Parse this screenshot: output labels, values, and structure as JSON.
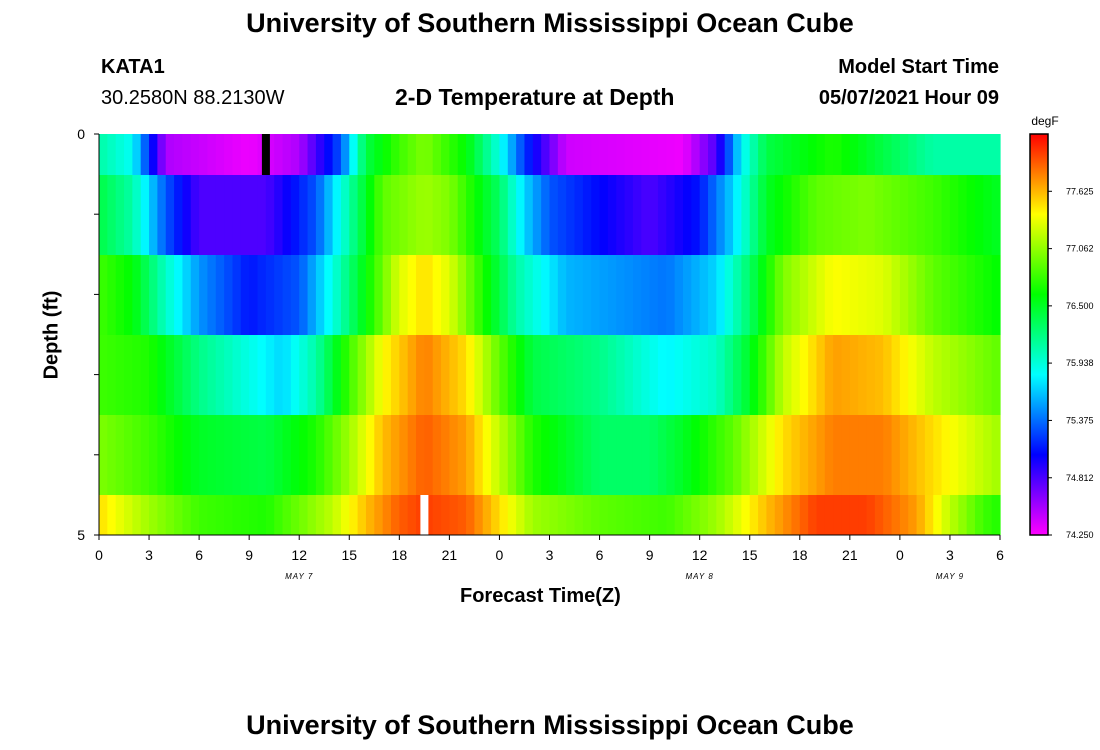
{
  "header": {
    "title": "University of Southern Mississippi Ocean Cube",
    "station": "KATA1",
    "coords": "30.2580N  88.2130W",
    "plot_title": "2-D Temperature at Depth",
    "model_label": "Model Start Time",
    "model_time": "05/07/2021 Hour 09"
  },
  "footer": {
    "title": "University of Southern Mississippi Ocean Cube"
  },
  "colorbar": {
    "unit": "degF",
    "min": 74.25,
    "max": 78.1875,
    "ticks": [
      "77.625",
      "77.062",
      "76.500",
      "75.938",
      "75.375",
      "74.812",
      "74.250"
    ]
  },
  "chart_data": {
    "type": "heatmap",
    "title": "2-D Temperature at Depth",
    "xlabel": "Forecast Time(Z)",
    "ylabel": "Depth (ft)",
    "x_start_hour": 0,
    "x_end_hour": 54,
    "x_tick_labels": [
      "0",
      "3",
      "6",
      "9",
      "12",
      "15",
      "18",
      "21",
      "0",
      "3",
      "6",
      "9",
      "12",
      "15",
      "18",
      "21",
      "0",
      "3",
      "6"
    ],
    "date_labels": [
      {
        "label": "MAY 7",
        "hour": 12
      },
      {
        "label": "MAY 8",
        "hour": 36
      },
      {
        "label": "MAY 9",
        "hour": 51
      }
    ],
    "y_tick_labels": [
      "0",
      "5"
    ],
    "ylim": [
      0,
      5
    ],
    "depth_layers": [
      {
        "depth": "0.0-0.5",
        "temps": [
          [
            0,
            76.1
          ],
          [
            2,
            75.85
          ],
          [
            4,
            74.5
          ],
          [
            9,
            74.3
          ],
          [
            12,
            74.5
          ],
          [
            14.5,
            75.3
          ],
          [
            16,
            76.4
          ],
          [
            18,
            76.8
          ],
          [
            19.5,
            77.0
          ],
          [
            22,
            76.6
          ],
          [
            24,
            75.9
          ],
          [
            25.5,
            75.2
          ],
          [
            28,
            74.4
          ],
          [
            35,
            74.3
          ],
          [
            37,
            74.8
          ],
          [
            38.5,
            75.8
          ],
          [
            40,
            76.4
          ],
          [
            44,
            76.7
          ],
          [
            46,
            76.5
          ],
          [
            50,
            76.1
          ],
          [
            54,
            76.1
          ]
        ]
      },
      {
        "depth": "0.5-1.5",
        "temps": [
          [
            0,
            76.4
          ],
          [
            2,
            76.1
          ],
          [
            4,
            75.3
          ],
          [
            6,
            74.8
          ],
          [
            10,
            74.8
          ],
          [
            13,
            75.3
          ],
          [
            15,
            76.1
          ],
          [
            17,
            76.9
          ],
          [
            19.5,
            77.1
          ],
          [
            21,
            77.0
          ],
          [
            24,
            76.3
          ],
          [
            25.5,
            75.7
          ],
          [
            27,
            75.3
          ],
          [
            33,
            74.8
          ],
          [
            36,
            75.1
          ],
          [
            38,
            75.7
          ],
          [
            40,
            76.5
          ],
          [
            43,
            76.9
          ],
          [
            46,
            77.0
          ],
          [
            50,
            76.8
          ],
          [
            54,
            76.5
          ]
        ]
      },
      {
        "depth": "1.5-2.5",
        "temps": [
          [
            0,
            76.8
          ],
          [
            2,
            76.6
          ],
          [
            4,
            76.0
          ],
          [
            6,
            75.5
          ],
          [
            9,
            75.1
          ],
          [
            12,
            75.3
          ],
          [
            14,
            75.9
          ],
          [
            16,
            76.6
          ],
          [
            18,
            77.3
          ],
          [
            19.5,
            77.5
          ],
          [
            21,
            77.3
          ],
          [
            23,
            76.7
          ],
          [
            25,
            76.1
          ],
          [
            28,
            75.6
          ],
          [
            34,
            75.4
          ],
          [
            37,
            75.7
          ],
          [
            39,
            76.3
          ],
          [
            41,
            77.0
          ],
          [
            44,
            77.4
          ],
          [
            47,
            77.3
          ],
          [
            50,
            76.9
          ],
          [
            54,
            76.6
          ]
        ]
      },
      {
        "depth": "2.5-3.5",
        "temps": [
          [
            0,
            76.8
          ],
          [
            3,
            76.7
          ],
          [
            6,
            76.2
          ],
          [
            9,
            75.9
          ],
          [
            11,
            75.7
          ],
          [
            13,
            76.1
          ],
          [
            15,
            76.8
          ],
          [
            17,
            77.4
          ],
          [
            19.5,
            77.8
          ],
          [
            22,
            77.5
          ],
          [
            24,
            76.9
          ],
          [
            26,
            76.4
          ],
          [
            30,
            76.2
          ],
          [
            34,
            75.8
          ],
          [
            37,
            76.0
          ],
          [
            39,
            76.5
          ],
          [
            41,
            77.2
          ],
          [
            44,
            77.7
          ],
          [
            47,
            77.6
          ],
          [
            50,
            77.2
          ],
          [
            54,
            76.9
          ]
        ]
      },
      {
        "depth": "3.5-4.5",
        "temps": [
          [
            0,
            77.0
          ],
          [
            3,
            76.8
          ],
          [
            6,
            76.5
          ],
          [
            10,
            76.4
          ],
          [
            13,
            76.7
          ],
          [
            15,
            77.1
          ],
          [
            17,
            77.6
          ],
          [
            19.5,
            77.9
          ],
          [
            22,
            77.7
          ],
          [
            24,
            77.2
          ],
          [
            26,
            76.7
          ],
          [
            30,
            76.3
          ],
          [
            33,
            76.3
          ],
          [
            35,
            76.5
          ],
          [
            38,
            76.9
          ],
          [
            41,
            77.5
          ],
          [
            44,
            77.8
          ],
          [
            47,
            77.8
          ],
          [
            50,
            77.5
          ],
          [
            54,
            77.1
          ]
        ]
      },
      {
        "depth": "4.5-5.0",
        "temps": [
          [
            0,
            77.5
          ],
          [
            3,
            77.1
          ],
          [
            6,
            76.8
          ],
          [
            10,
            76.7
          ],
          [
            14,
            77.2
          ],
          [
            16,
            77.6
          ],
          [
            18,
            77.9
          ],
          [
            19.5,
            78.0
          ],
          [
            22,
            77.9
          ],
          [
            24,
            77.5
          ],
          [
            26,
            77.1
          ],
          [
            30,
            76.9
          ],
          [
            34,
            76.8
          ],
          [
            37,
            77.1
          ],
          [
            40,
            77.6
          ],
          [
            43,
            78.0
          ],
          [
            46,
            78.0
          ],
          [
            49,
            77.7
          ],
          [
            51,
            77.2
          ],
          [
            53,
            76.8
          ],
          [
            54,
            76.7
          ]
        ]
      }
    ],
    "markers": [
      {
        "hour": 10,
        "layer": 0,
        "color": "#000000"
      },
      {
        "hour": 19.5,
        "layer": 5,
        "color": "#ffffff"
      }
    ]
  }
}
